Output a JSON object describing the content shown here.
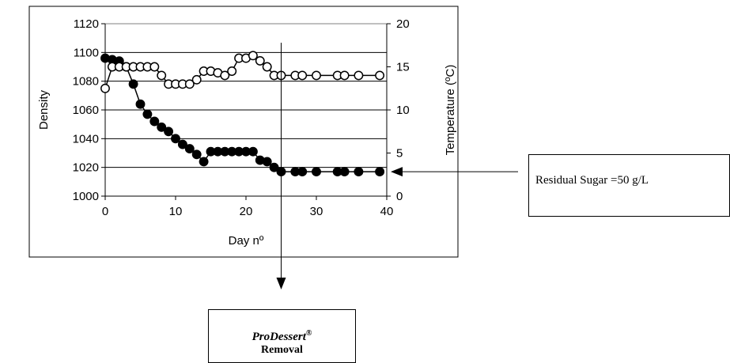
{
  "chart_data": {
    "type": "scatter",
    "title": "",
    "xlabel": "Day nº",
    "ylabel": "Density",
    "y2label": "Temperature (ºC)",
    "xlim": [
      0,
      40
    ],
    "ylim": [
      1000,
      1120
    ],
    "y2lim": [
      0,
      20
    ],
    "x_ticks": [
      0,
      10,
      20,
      30,
      40
    ],
    "y_ticks": [
      1000,
      1020,
      1040,
      1060,
      1080,
      1100,
      1120
    ],
    "y2_ticks": [
      0,
      5,
      10,
      15,
      20
    ],
    "grid": true,
    "legend": "none",
    "series": [
      {
        "axis": "left",
        "marker": "filled-circle",
        "color": "#000000",
        "x": [
          0,
          1,
          2,
          3,
          4,
          5,
          6,
          7,
          8,
          9,
          10,
          11,
          12,
          13,
          14,
          15,
          16,
          17,
          18,
          19,
          20,
          21,
          22,
          23,
          24,
          25,
          27,
          28,
          30,
          33,
          34,
          36,
          39
        ],
        "y": [
          1096,
          1095,
          1094,
          1090,
          1078,
          1064,
          1057,
          1052,
          1048,
          1045,
          1040,
          1036,
          1033,
          1029,
          1024,
          1031,
          1031,
          1031,
          1031,
          1031,
          1031,
          1031,
          1025,
          1024,
          1020,
          1017,
          1017,
          1017,
          1017,
          1017,
          1017,
          1017,
          1017
        ]
      },
      {
        "axis": "right",
        "marker": "open-circle",
        "color": "#000000",
        "x": [
          0,
          1,
          2,
          3,
          4,
          5,
          6,
          7,
          8,
          9,
          10,
          11,
          12,
          13,
          14,
          15,
          16,
          17,
          18,
          19,
          20,
          21,
          22,
          23,
          24,
          25,
          27,
          28,
          30,
          33,
          34,
          36,
          39
        ],
        "y": [
          12.5,
          15,
          15,
          15,
          15,
          15,
          15,
          15,
          14,
          13,
          13,
          13,
          13,
          13.5,
          14.5,
          14.5,
          14.3,
          14,
          14.5,
          16,
          16,
          16.3,
          15.7,
          15,
          14,
          14,
          14,
          14,
          14,
          14,
          14,
          14,
          14
        ]
      }
    ],
    "annotations": {
      "removal_day": 25,
      "residual_sugar_density": 1017
    }
  },
  "callouts": {
    "residual_sugar": "Residual Sugar =50 g/L",
    "brand": "ProDessert",
    "brand_mark": "®",
    "action": "Removal"
  }
}
